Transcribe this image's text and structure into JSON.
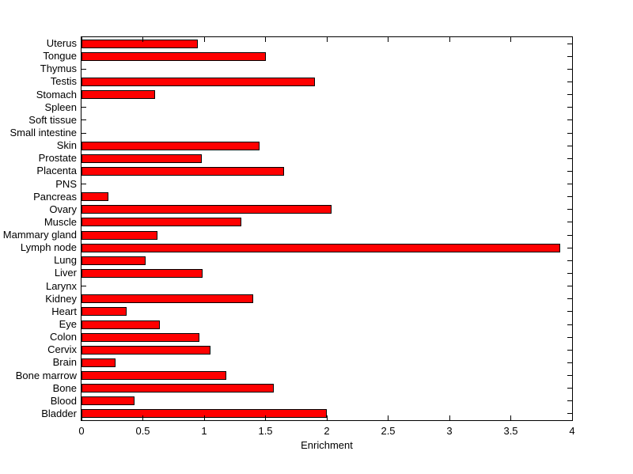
{
  "figure": {
    "background_color": "#ffffff",
    "axis_color": "#000000",
    "text_color": "#000000"
  },
  "chart_data": {
    "type": "bar",
    "orientation": "horizontal",
    "title": "",
    "xlabel": "Enrichment",
    "ylabel": "",
    "xlim": [
      0,
      4
    ],
    "xticks": [
      0,
      0.5,
      1,
      1.5,
      2,
      2.5,
      3,
      3.5,
      4
    ],
    "xtick_labels": [
      "0",
      "0.5",
      "1",
      "1.5",
      "2",
      "2.5",
      "3",
      "3.5",
      "4"
    ],
    "grid": false,
    "legend": null,
    "bar_color": "#ff0000",
    "bar_edge_color": "#000000",
    "categories": [
      "Uterus",
      "Tongue",
      "Thymus",
      "Testis",
      "Stomach",
      "Spleen",
      "Soft tissue",
      "Small intestine",
      "Skin",
      "Prostate",
      "Placenta",
      "PNS",
      "Pancreas",
      "Ovary",
      "Muscle",
      "Mammary gland",
      "Lymph node",
      "Lung",
      "Liver",
      "Larynx",
      "Kidney",
      "Heart",
      "Eye",
      "Colon",
      "Cervix",
      "Brain",
      "Bone marrow",
      "Bone",
      "Blood",
      "Bladder"
    ],
    "values": [
      0.95,
      1.5,
      0,
      1.9,
      0.6,
      0,
      0,
      0,
      1.45,
      0.98,
      1.65,
      0,
      0.22,
      2.04,
      1.3,
      0.62,
      3.9,
      0.52,
      0.99,
      0,
      1.4,
      0.37,
      0.64,
      0.96,
      1.05,
      0.28,
      1.18,
      1.57,
      0.43,
      2.0
    ]
  }
}
